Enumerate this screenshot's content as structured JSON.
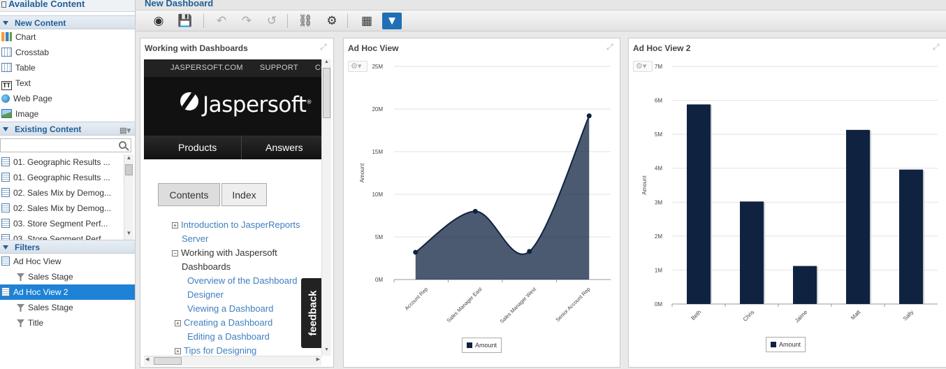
{
  "left_panel": {
    "title": "Available Content",
    "new_content": {
      "label": "New Content",
      "items": [
        {
          "label": "Chart",
          "icon": "chart-icon"
        },
        {
          "label": "Crosstab",
          "icon": "crosstab-icon"
        },
        {
          "label": "Table",
          "icon": "table-icon"
        },
        {
          "label": "Text",
          "icon": "text-icon"
        },
        {
          "label": "Web Page",
          "icon": "web-page-icon"
        },
        {
          "label": "Image",
          "icon": "image-icon"
        }
      ]
    },
    "existing_content": {
      "label": "Existing Content",
      "items": [
        "01. Geographic Results ...",
        "01. Geographic Results ...",
        "02. Sales Mix by Demog...",
        "02. Sales Mix by Demog...",
        "03. Store Segment Perf...",
        "03. Store Segment Perf..."
      ]
    },
    "filters": {
      "label": "Filters",
      "items": [
        {
          "label": "Ad Hoc View",
          "level": 0,
          "selected": false
        },
        {
          "label": "Sales Stage",
          "level": 1,
          "selected": false
        },
        {
          "label": "Ad Hoc View 2",
          "level": 0,
          "selected": true
        },
        {
          "label": "Sales Stage",
          "level": 1,
          "selected": false
        },
        {
          "label": "Title",
          "level": 1,
          "selected": false
        }
      ]
    }
  },
  "dashboard": {
    "title": "New Dashboard",
    "toolbar": [
      {
        "name": "preview-button",
        "glyph": "◉"
      },
      {
        "name": "save-button",
        "glyph": "💾"
      },
      {
        "name": "undo-button",
        "glyph": "↶"
      },
      {
        "name": "redo-button",
        "glyph": "↷"
      },
      {
        "name": "undo-all-button",
        "glyph": "↺"
      },
      {
        "name": "parameter-mapping-button",
        "glyph": "⛓"
      },
      {
        "name": "properties-button",
        "glyph": "⚙"
      },
      {
        "name": "grid-button",
        "glyph": "▦"
      },
      {
        "name": "filter-button",
        "glyph": "▼"
      }
    ]
  },
  "web_dashlet": {
    "title": "Working with Dashboards",
    "nav": [
      "JASPERSOFT.COM",
      "SUPPORT",
      "CO"
    ],
    "logo": "Jaspersoft",
    "menu": [
      "Products",
      "Answers"
    ],
    "tabs": [
      "Contents",
      "Index"
    ],
    "toc": [
      {
        "text": "Introduction to JasperReports",
        "indent": 0,
        "toggle": "+",
        "link": true
      },
      {
        "text": "Server",
        "indent": 0,
        "toggle": "",
        "link": true
      },
      {
        "text": "Working with Jaspersoft",
        "indent": 0,
        "toggle": "-",
        "link": false
      },
      {
        "text": "Dashboards",
        "indent": 0,
        "toggle": "",
        "link": false
      },
      {
        "text": "Overview of the Dashboard",
        "indent": 1,
        "toggle": "",
        "link": true
      },
      {
        "text": "Designer",
        "indent": 1,
        "toggle": "",
        "link": true
      },
      {
        "text": "Viewing a Dashboard",
        "indent": 1,
        "toggle": "",
        "link": true
      },
      {
        "text": "Creating a Dashboard",
        "indent": 1,
        "toggle": "+",
        "link": true
      },
      {
        "text": "Editing a Dashboard",
        "indent": 1,
        "toggle": "",
        "link": true
      },
      {
        "text": "Tips for Designing",
        "indent": 1,
        "toggle": "+",
        "link": true
      }
    ],
    "feedback": "feedback"
  },
  "area_dashlet": {
    "title": "Ad Hoc View"
  },
  "bar_dashlet": {
    "title": "Ad Hoc View 2"
  },
  "chart_data": [
    {
      "type": "area",
      "title": "Ad Hoc View",
      "categories": [
        "Account Rep",
        "Sales Manager East",
        "Sales Manager West",
        "Senior Account Rep"
      ],
      "series": [
        {
          "name": "Amount",
          "values": [
            3200000,
            8000000,
            3300000,
            19200000
          ]
        }
      ],
      "ylabel": "Amount",
      "yticks": [
        "0M",
        "5M",
        "10M",
        "15M",
        "20M",
        "25M"
      ],
      "ylim": [
        0,
        25000000
      ],
      "color": "#0f2340",
      "grid": true,
      "legend": "bottom"
    },
    {
      "type": "bar",
      "title": "Ad Hoc View 2",
      "categories": [
        "Beth",
        "Chris",
        "Jaime",
        "Matt",
        "Sally"
      ],
      "series": [
        {
          "name": "Amount",
          "values": [
            5880000,
            3020000,
            1120000,
            5130000,
            3960000
          ]
        }
      ],
      "ylabel": "Amount",
      "yticks": [
        "0M",
        "1M",
        "2M",
        "3M",
        "4M",
        "5M",
        "6M",
        "7M"
      ],
      "ylim": [
        0,
        7000000
      ],
      "color": "#0f2340",
      "grid": true,
      "legend": "bottom"
    }
  ]
}
